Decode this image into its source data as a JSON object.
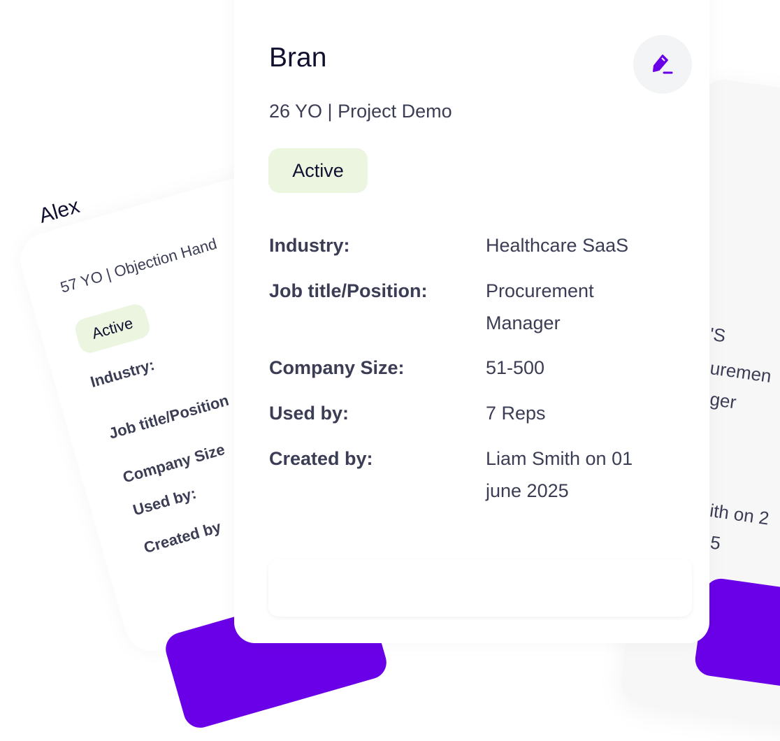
{
  "colors": {
    "accent": "#6a00e8",
    "badge_bg": "#ebf5e0",
    "text": "#3b3d55",
    "title": "#0f1030"
  },
  "left_card": {
    "name": "Alex",
    "subtitle": "57 YO | Objection Hand",
    "status": "Active",
    "labels": [
      "Industry:",
      "Job title/Position",
      "Company Size",
      "Used by:",
      "Created by"
    ]
  },
  "right_card": {
    "fragments": [
      "'S",
      "uremen",
      "ger",
      "ith on 2",
      "5"
    ]
  },
  "main_card": {
    "name": "Bran",
    "subtitle": "26 YO | Project Demo",
    "status": "Active",
    "edit_icon": "pencil-icon",
    "fields": [
      {
        "label": "Industry:",
        "value": "Healthcare SaaS"
      },
      {
        "label": "Job title/Position:",
        "value": "Procurement Manager"
      },
      {
        "label": "Company Size:",
        "value": "51-500"
      },
      {
        "label": "Used by:",
        "value": "7 Reps"
      },
      {
        "label": "Created by:",
        "value": "Liam Smith on 01 june 2025"
      }
    ]
  }
}
